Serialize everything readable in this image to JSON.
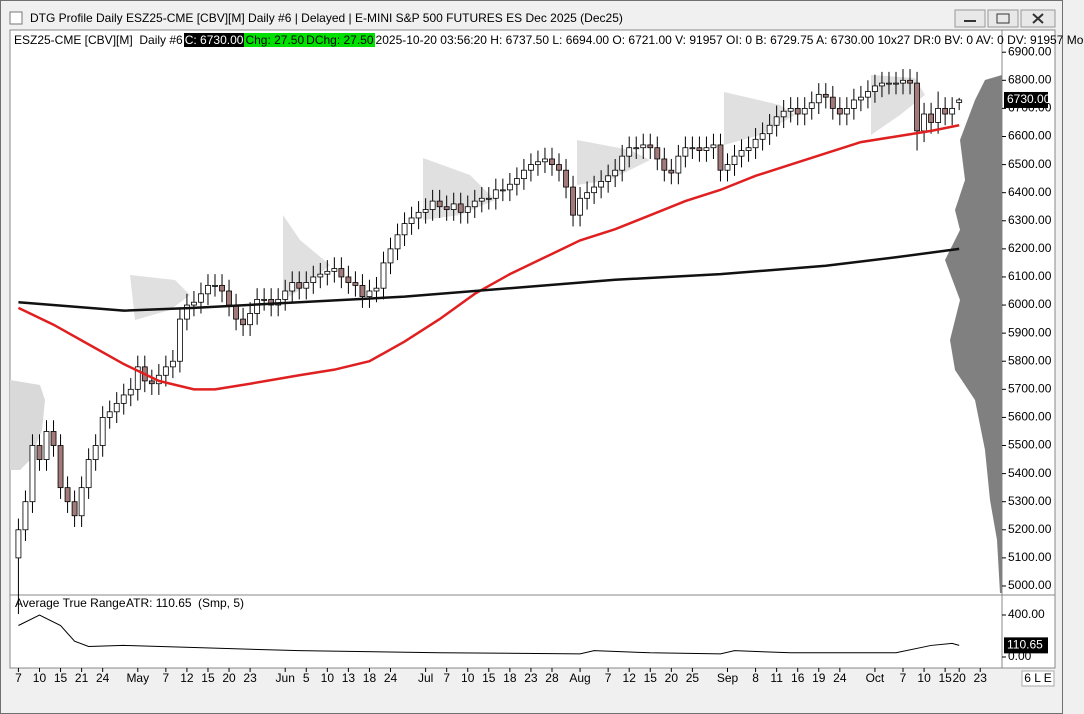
{
  "window": {
    "title": "DTG Profile Daily ESZ25-CME [CBV][M]  Daily #6 | Delayed | E-MINI S&P 500 FUTURES ES Dec 2025 (Dec25)",
    "info": [
      "ESZ25-CME [CBV][M]  Daily #6",
      "C: 6730.00",
      "Chg: 27.50",
      "DChg: 27.50",
      "2025-10-20 03:56:20 H: 6737.50 L: 6694.00 O: 6721.00 V: 91957 OI: 0 B: 6729.75 A: 6730.00 10x27 DR:0 BV: 0 AV: 0 DV: 91957 Mo"
    ],
    "status": "6 L E"
  },
  "chart_data": [
    {
      "type": "candlestick",
      "up_color": "#ffffff",
      "down_color": "#a27a7a",
      "open": [
        5100,
        5200,
        5300,
        5500,
        5450,
        5550,
        5500,
        5350,
        5300,
        5250,
        5350,
        5450,
        5500,
        5600,
        5620,
        5650,
        5680,
        5700,
        5780,
        5730,
        5720,
        5750,
        5780,
        5800,
        5950,
        6000,
        6010,
        6040,
        6070,
        6070,
        6050,
        6000,
        5950,
        5930,
        5970,
        6020,
        6020,
        6000,
        6020,
        6050,
        6080,
        6060,
        6080,
        6100,
        6110,
        6120,
        6130,
        6100,
        6080,
        6070,
        6030,
        6050,
        6060,
        6150,
        6200,
        6250,
        6290,
        6310,
        6330,
        6340,
        6370,
        6350,
        6340,
        6360,
        6330,
        6350,
        6370,
        6380,
        6380,
        6410,
        6410,
        6430,
        6450,
        6480,
        6500,
        6510,
        6520,
        6500,
        6480,
        6420,
        6320,
        6380,
        6400,
        6420,
        6440,
        6460,
        6480,
        6530,
        6560,
        6560,
        6570,
        6560,
        6520,
        6480,
        6470,
        6530,
        6560,
        6560,
        6550,
        6560,
        6570,
        6480,
        6500,
        6530,
        6550,
        6560,
        6590,
        6610,
        6640,
        6670,
        6690,
        6700,
        6680,
        6700,
        6720,
        6750,
        6740,
        6700,
        6680,
        6700,
        6730,
        6740,
        6760,
        6780,
        6790,
        6790,
        6790,
        6800,
        6790,
        6620,
        6680,
        6650,
        6700,
        6680,
        6721
      ],
      "high": [
        5240,
        5340,
        5540,
        5540,
        5590,
        5590,
        5540,
        5390,
        5340,
        5390,
        5490,
        5540,
        5640,
        5660,
        5690,
        5720,
        5740,
        5820,
        5820,
        5770,
        5790,
        5820,
        5840,
        5990,
        6040,
        6050,
        6080,
        6110,
        6110,
        6110,
        6090,
        6040,
        5990,
        6010,
        6060,
        6060,
        6060,
        6060,
        6090,
        6120,
        6120,
        6120,
        6140,
        6150,
        6160,
        6170,
        6170,
        6140,
        6120,
        6110,
        6090,
        6100,
        6190,
        6240,
        6290,
        6330,
        6350,
        6370,
        6380,
        6410,
        6410,
        6390,
        6400,
        6400,
        6390,
        6410,
        6420,
        6420,
        6450,
        6450,
        6470,
        6490,
        6520,
        6540,
        6550,
        6560,
        6560,
        6540,
        6520,
        6460,
        6420,
        6440,
        6460,
        6480,
        6500,
        6520,
        6570,
        6600,
        6600,
        6610,
        6610,
        6600,
        6560,
        6520,
        6570,
        6600,
        6600,
        6600,
        6600,
        6610,
        6610,
        6540,
        6570,
        6590,
        6600,
        6630,
        6650,
        6680,
        6710,
        6730,
        6740,
        6740,
        6740,
        6760,
        6790,
        6790,
        6780,
        6740,
        6740,
        6770,
        6780,
        6800,
        6820,
        6830,
        6830,
        6830,
        6840,
        6840,
        6830,
        6720,
        6720,
        6760,
        6740,
        6740,
        6737.5
      ],
      "low": [
        4900,
        5160,
        5260,
        5410,
        5410,
        5460,
        5310,
        5260,
        5210,
        5210,
        5310,
        5410,
        5460,
        5560,
        5580,
        5610,
        5640,
        5660,
        5690,
        5680,
        5680,
        5710,
        5740,
        5760,
        5910,
        5960,
        5970,
        6000,
        6030,
        6010,
        5960,
        5910,
        5890,
        5890,
        5930,
        5980,
        5960,
        5960,
        5980,
        6010,
        6020,
        6020,
        6040,
        6060,
        6070,
        6080,
        6060,
        6040,
        6030,
        5990,
        5990,
        6010,
        6020,
        6110,
        6160,
        6210,
        6250,
        6270,
        6290,
        6300,
        6310,
        6300,
        6300,
        6290,
        6290,
        6310,
        6330,
        6340,
        6340,
        6370,
        6370,
        6390,
        6410,
        6440,
        6460,
        6470,
        6460,
        6440,
        6380,
        6280,
        6280,
        6340,
        6360,
        6380,
        6400,
        6420,
        6440,
        6490,
        6520,
        6520,
        6520,
        6480,
        6440,
        6430,
        6430,
        6490,
        6520,
        6510,
        6510,
        6520,
        6440,
        6440,
        6460,
        6490,
        6510,
        6520,
        6550,
        6570,
        6600,
        6630,
        6650,
        6640,
        6640,
        6660,
        6680,
        6700,
        6660,
        6640,
        6640,
        6660,
        6690,
        6700,
        6720,
        6740,
        6750,
        6750,
        6750,
        6750,
        6550,
        6580,
        6610,
        6610,
        6640,
        6640,
        6694
      ],
      "close": [
        5200,
        5300,
        5500,
        5450,
        5550,
        5500,
        5350,
        5300,
        5250,
        5350,
        5450,
        5500,
        5600,
        5620,
        5650,
        5680,
        5700,
        5780,
        5730,
        5720,
        5750,
        5780,
        5800,
        5950,
        6000,
        6010,
        6040,
        6070,
        6070,
        6050,
        6000,
        5950,
        5930,
        5970,
        6020,
        6020,
        6000,
        6020,
        6050,
        6080,
        6060,
        6080,
        6100,
        6110,
        6120,
        6130,
        6100,
        6080,
        6070,
        6030,
        6050,
        6060,
        6150,
        6200,
        6250,
        6290,
        6310,
        6330,
        6340,
        6370,
        6350,
        6340,
        6360,
        6330,
        6350,
        6370,
        6380,
        6380,
        6410,
        6410,
        6430,
        6450,
        6480,
        6500,
        6510,
        6520,
        6500,
        6480,
        6420,
        6320,
        6380,
        6400,
        6420,
        6440,
        6460,
        6480,
        6530,
        6560,
        6560,
        6570,
        6560,
        6520,
        6480,
        6470,
        6530,
        6560,
        6560,
        6550,
        6560,
        6570,
        6480,
        6500,
        6530,
        6550,
        6560,
        6590,
        6610,
        6640,
        6670,
        6690,
        6700,
        6680,
        6700,
        6720,
        6750,
        6740,
        6700,
        6680,
        6700,
        6730,
        6740,
        6760,
        6780,
        6790,
        6790,
        6790,
        6800,
        6790,
        6620,
        6680,
        6650,
        6700,
        6680,
        6700,
        6730
      ],
      "series": [
        {
          "color": "#e02020",
          "x": [
            0,
            5,
            10,
            15,
            20,
            25,
            28,
            33,
            40,
            45,
            50,
            55,
            60,
            65,
            70,
            75,
            80,
            85,
            90,
            95,
            100,
            105,
            110,
            115,
            120,
            125,
            130,
            134
          ],
          "values": [
            5990,
            5930,
            5860,
            5790,
            5730,
            5700,
            5700,
            5720,
            5750,
            5770,
            5800,
            5870,
            5950,
            6040,
            6110,
            6170,
            6230,
            6270,
            6320,
            6370,
            6410,
            6460,
            6500,
            6540,
            6580,
            6600,
            6620,
            6640
          ]
        },
        {
          "color": "#111111",
          "x": [
            0,
            15,
            25,
            40,
            55,
            70,
            85,
            100,
            115,
            125,
            134
          ],
          "values": [
            6010,
            5980,
            5990,
            6010,
            6030,
            6060,
            6090,
            6110,
            6140,
            6170,
            6200
          ]
        }
      ],
      "annotations": [
        {
          "value": 6730,
          "label": "6730.00"
        }
      ],
      "xlim": [
        -1.2,
        140.1
      ],
      "ylim": [
        4975,
        6915
      ],
      "xticks": [
        {
          "value": 0,
          "label": "7"
        },
        {
          "value": 3,
          "label": "10"
        },
        {
          "value": 6,
          "label": "15"
        },
        {
          "value": 9,
          "label": "21"
        },
        {
          "value": 12,
          "label": "24"
        },
        {
          "value": 17,
          "label": "May"
        },
        {
          "value": 21,
          "label": "7"
        },
        {
          "value": 24,
          "label": "12"
        },
        {
          "value": 27,
          "label": "15"
        },
        {
          "value": 30,
          "label": "20"
        },
        {
          "value": 33,
          "label": "23"
        },
        {
          "value": 38,
          "label": "Jun"
        },
        {
          "value": 41,
          "label": "5"
        },
        {
          "value": 44,
          "label": "10"
        },
        {
          "value": 47,
          "label": "13"
        },
        {
          "value": 50,
          "label": "18"
        },
        {
          "value": 53,
          "label": "24"
        },
        {
          "value": 58,
          "label": "Jul"
        },
        {
          "value": 61,
          "label": "7"
        },
        {
          "value": 64,
          "label": "10"
        },
        {
          "value": 67,
          "label": "15"
        },
        {
          "value": 70,
          "label": "18"
        },
        {
          "value": 73,
          "label": "23"
        },
        {
          "value": 76,
          "label": "28"
        },
        {
          "value": 80,
          "label": "Aug"
        },
        {
          "value": 84,
          "label": "7"
        },
        {
          "value": 87,
          "label": "12"
        },
        {
          "value": 90,
          "label": "15"
        },
        {
          "value": 93,
          "label": "20"
        },
        {
          "value": 96,
          "label": "25"
        },
        {
          "value": 101,
          "label": "Sep"
        },
        {
          "value": 105,
          "label": "8"
        },
        {
          "value": 108,
          "label": "11"
        },
        {
          "value": 111,
          "label": "16"
        },
        {
          "value": 114,
          "label": "19"
        },
        {
          "value": 117,
          "label": "24"
        },
        {
          "value": 122,
          "label": "Oct"
        },
        {
          "value": 126,
          "label": "7"
        },
        {
          "value": 129,
          "label": "10"
        },
        {
          "value": 132,
          "label": "15"
        },
        {
          "value": 134,
          "label": "20"
        },
        {
          "value": 137,
          "label": "23"
        }
      ],
      "yticks": [
        {
          "value": 6900,
          "label": "6900.00"
        },
        {
          "value": 6800,
          "label": "6800.00"
        },
        {
          "value": 6700,
          "label": "6700.00"
        },
        {
          "value": 6600,
          "label": "6600.00"
        },
        {
          "value": 6500,
          "label": "6500.00"
        },
        {
          "value": 6400,
          "label": "6400.00"
        },
        {
          "value": 6300,
          "label": "6300.00"
        },
        {
          "value": 6200,
          "label": "6200.00"
        },
        {
          "value": 6100,
          "label": "6100.00"
        },
        {
          "value": 6000,
          "label": "6000.00"
        },
        {
          "value": 5900,
          "label": "5900.00"
        },
        {
          "value": 5800,
          "label": "5800.00"
        },
        {
          "value": 5700,
          "label": "5700.00"
        },
        {
          "value": 5600,
          "label": "5600.00"
        },
        {
          "value": 5500,
          "label": "5500.00"
        },
        {
          "value": 5400,
          "label": "5400.00"
        },
        {
          "value": 5300,
          "label": "5300.00"
        },
        {
          "value": 5200,
          "label": "5200.00"
        },
        {
          "value": 5100,
          "label": "5100.00"
        },
        {
          "value": 5000,
          "label": "5000.00"
        }
      ]
    },
    {
      "type": "line",
      "title": "Average True Range",
      "subtitle": "ATR: 110.65",
      "note": "(Smp, 5)",
      "color": "#000000",
      "x": [
        0,
        3,
        6,
        8,
        10,
        15,
        25,
        40,
        60,
        80,
        82,
        90,
        100,
        102,
        110,
        125,
        130,
        133,
        134
      ],
      "values": [
        300,
        400,
        300,
        150,
        100,
        110,
        90,
        60,
        40,
        30,
        60,
        40,
        30,
        60,
        40,
        40,
        110,
        130,
        110.65
      ],
      "annotations": [
        {
          "value": 110.65,
          "label": "110.65"
        }
      ],
      "xlim": [
        -1.2,
        140.1
      ],
      "ylim": [
        -105,
        562
      ],
      "yticks": [
        {
          "value": 400,
          "label": "400.00"
        },
        {
          "value": 0,
          "label": "0.00"
        }
      ]
    }
  ]
}
